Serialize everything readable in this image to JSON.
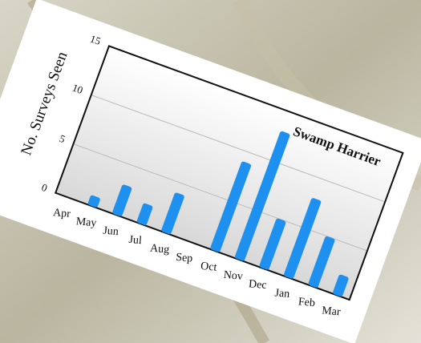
{
  "chart_data": {
    "type": "bar",
    "title": "Swamp Harrier",
    "y_label": "No. Surveys Seen",
    "categories": [
      "Apr",
      "May",
      "Jun",
      "Jul",
      "Aug",
      "Sep",
      "Oct",
      "Nov",
      "Dec",
      "Jan",
      "Feb",
      "Mar"
    ],
    "values": [
      0,
      1,
      3,
      2,
      4,
      0,
      9,
      13,
      5,
      8,
      5,
      2
    ],
    "color": "#1e90f0",
    "ylim": [
      0,
      15
    ],
    "yticks": [
      0,
      5,
      10,
      15
    ],
    "grid": true
  }
}
